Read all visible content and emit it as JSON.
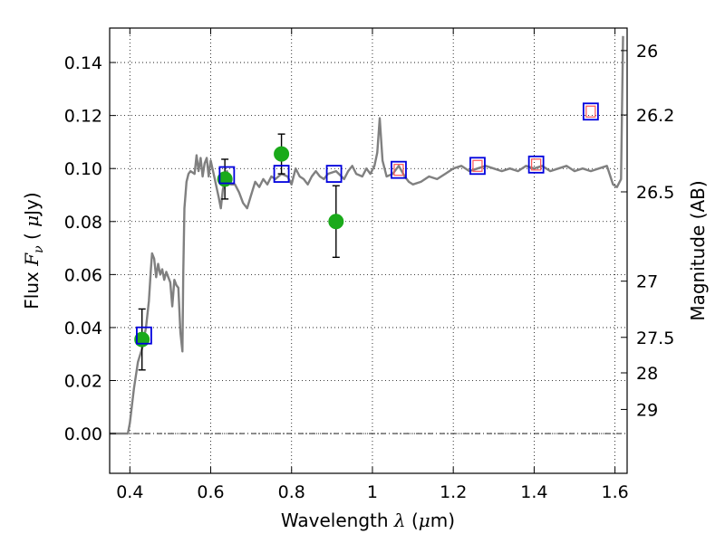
{
  "chart_data": {
    "type": "line",
    "xlabel": {
      "prefix": "Wavelength",
      "symbol": "λ",
      "unit_open": "(",
      "unit_mu": "μ",
      "unit_rest": "m)"
    },
    "ylabel": {
      "prefix": "Flux",
      "symbol": "F",
      "subscript": "ν",
      "unit_open": "(",
      "unit_mu": "μ",
      "unit_rest": "Jy)"
    },
    "y2label": "Magnitude (AB)",
    "xlim": [
      0.35,
      1.63
    ],
    "ylim": [
      -0.015,
      0.153
    ],
    "grid": true,
    "x_ticks": [
      {
        "value": 0.4,
        "label": "0.4"
      },
      {
        "value": 0.6,
        "label": "0.6"
      },
      {
        "value": 0.8,
        "label": "0.8"
      },
      {
        "value": 1.0,
        "label": "1"
      },
      {
        "value": 1.2,
        "label": "1.2"
      },
      {
        "value": 1.4,
        "label": "1.4"
      },
      {
        "value": 1.6,
        "label": "1.6"
      }
    ],
    "y_ticks": [
      {
        "value": 0.0,
        "label": "0.00"
      },
      {
        "value": 0.02,
        "label": "0.02"
      },
      {
        "value": 0.04,
        "label": "0.04"
      },
      {
        "value": 0.06,
        "label": "0.06"
      },
      {
        "value": 0.08,
        "label": "0.08"
      },
      {
        "value": 0.1,
        "label": "0.10"
      },
      {
        "value": 0.12,
        "label": "0.12"
      },
      {
        "value": 0.14,
        "label": "0.14"
      }
    ],
    "y2_ticks": [
      {
        "flux": 0.1445,
        "label": "26"
      },
      {
        "flux": 0.1202,
        "label": "26.2"
      },
      {
        "flux": 0.0912,
        "label": "26.5"
      },
      {
        "flux": 0.0575,
        "label": "27"
      },
      {
        "flux": 0.0363,
        "label": "27.5"
      },
      {
        "flux": 0.0229,
        "label": "28"
      },
      {
        "flux": 0.0091,
        "label": "29"
      }
    ],
    "zero_line": 0.0,
    "series": [
      {
        "kind": "line",
        "color": "#808080",
        "points": [
          [
            0.35,
            0.0
          ],
          [
            0.395,
            0.0
          ],
          [
            0.4,
            0.004
          ],
          [
            0.41,
            0.017
          ],
          [
            0.42,
            0.027
          ],
          [
            0.43,
            0.032
          ],
          [
            0.44,
            0.04
          ],
          [
            0.447,
            0.05
          ],
          [
            0.452,
            0.062
          ],
          [
            0.455,
            0.068
          ],
          [
            0.46,
            0.066
          ],
          [
            0.465,
            0.059
          ],
          [
            0.47,
            0.064
          ],
          [
            0.475,
            0.06
          ],
          [
            0.48,
            0.062
          ],
          [
            0.485,
            0.058
          ],
          [
            0.49,
            0.061
          ],
          [
            0.495,
            0.059
          ],
          [
            0.5,
            0.057
          ],
          [
            0.505,
            0.048
          ],
          [
            0.51,
            0.058
          ],
          [
            0.515,
            0.056
          ],
          [
            0.52,
            0.055
          ],
          [
            0.525,
            0.038
          ],
          [
            0.53,
            0.031
          ],
          [
            0.532,
            0.06
          ],
          [
            0.535,
            0.085
          ],
          [
            0.54,
            0.095
          ],
          [
            0.545,
            0.098
          ],
          [
            0.55,
            0.099
          ],
          [
            0.56,
            0.098
          ],
          [
            0.565,
            0.105
          ],
          [
            0.57,
            0.099
          ],
          [
            0.575,
            0.104
          ],
          [
            0.58,
            0.097
          ],
          [
            0.585,
            0.102
          ],
          [
            0.59,
            0.104
          ],
          [
            0.595,
            0.097
          ],
          [
            0.6,
            0.103
          ],
          [
            0.61,
            0.096
          ],
          [
            0.62,
            0.089
          ],
          [
            0.625,
            0.085
          ],
          [
            0.63,
            0.092
          ],
          [
            0.64,
            0.099
          ],
          [
            0.65,
            0.094
          ],
          [
            0.66,
            0.094
          ],
          [
            0.67,
            0.091
          ],
          [
            0.68,
            0.087
          ],
          [
            0.69,
            0.085
          ],
          [
            0.7,
            0.09
          ],
          [
            0.71,
            0.095
          ],
          [
            0.72,
            0.093
          ],
          [
            0.73,
            0.096
          ],
          [
            0.74,
            0.094
          ],
          [
            0.75,
            0.097
          ],
          [
            0.76,
            0.096
          ],
          [
            0.775,
            0.098
          ],
          [
            0.79,
            0.097
          ],
          [
            0.8,
            0.094
          ],
          [
            0.81,
            0.1
          ],
          [
            0.82,
            0.097
          ],
          [
            0.83,
            0.096
          ],
          [
            0.84,
            0.094
          ],
          [
            0.85,
            0.097
          ],
          [
            0.86,
            0.099
          ],
          [
            0.87,
            0.097
          ],
          [
            0.88,
            0.096
          ],
          [
            0.89,
            0.098
          ],
          [
            0.91,
            0.099
          ],
          [
            0.93,
            0.096
          ],
          [
            0.94,
            0.099
          ],
          [
            0.95,
            0.101
          ],
          [
            0.96,
            0.098
          ],
          [
            0.975,
            0.097
          ],
          [
            0.985,
            0.1
          ],
          [
            0.995,
            0.098
          ],
          [
            1.005,
            0.101
          ],
          [
            1.012,
            0.106
          ],
          [
            1.018,
            0.119
          ],
          [
            1.025,
            0.103
          ],
          [
            1.035,
            0.097
          ],
          [
            1.05,
            0.098
          ],
          [
            1.065,
            0.101
          ],
          [
            1.08,
            0.097
          ],
          [
            1.09,
            0.095
          ],
          [
            1.1,
            0.094
          ],
          [
            1.12,
            0.095
          ],
          [
            1.14,
            0.097
          ],
          [
            1.16,
            0.096
          ],
          [
            1.18,
            0.098
          ],
          [
            1.2,
            0.1
          ],
          [
            1.22,
            0.101
          ],
          [
            1.24,
            0.099
          ],
          [
            1.26,
            0.1
          ],
          [
            1.28,
            0.101
          ],
          [
            1.3,
            0.1
          ],
          [
            1.32,
            0.099
          ],
          [
            1.34,
            0.1
          ],
          [
            1.36,
            0.099
          ],
          [
            1.38,
            0.101
          ],
          [
            1.4,
            0.1
          ],
          [
            1.42,
            0.101
          ],
          [
            1.44,
            0.099
          ],
          [
            1.46,
            0.1
          ],
          [
            1.48,
            0.101
          ],
          [
            1.5,
            0.099
          ],
          [
            1.52,
            0.1
          ],
          [
            1.54,
            0.099
          ],
          [
            1.56,
            0.1
          ],
          [
            1.58,
            0.101
          ],
          [
            1.595,
            0.094
          ],
          [
            1.605,
            0.093
          ],
          [
            1.615,
            0.096
          ],
          [
            1.62,
            0.15
          ]
        ]
      },
      {
        "kind": "points",
        "marker": "circle",
        "color": "#1aaa1a",
        "points": [
          {
            "x": 0.43,
            "y": 0.0355,
            "err": 0.0115
          },
          {
            "x": 0.635,
            "y": 0.096,
            "err": 0.0075
          },
          {
            "x": 0.775,
            "y": 0.1055,
            "err": 0.0075
          },
          {
            "x": 0.91,
            "y": 0.08,
            "err": 0.0135
          }
        ]
      },
      {
        "kind": "points",
        "marker": "square-open",
        "color": "#0000dd",
        "points": [
          {
            "x": 0.435,
            "y": 0.037
          },
          {
            "x": 0.64,
            "y": 0.0975
          },
          {
            "x": 0.775,
            "y": 0.098
          },
          {
            "x": 0.905,
            "y": 0.098
          },
          {
            "x": 1.065,
            "y": 0.0995
          },
          {
            "x": 1.26,
            "y": 0.101
          },
          {
            "x": 1.405,
            "y": 0.1015
          },
          {
            "x": 1.54,
            "y": 0.1215
          }
        ]
      },
      {
        "kind": "points",
        "marker": "square-open-small",
        "color": "#ff5555",
        "points": [
          {
            "x": 1.065,
            "y": 0.0995
          },
          {
            "x": 1.26,
            "y": 0.101
          },
          {
            "x": 1.405,
            "y": 0.1015
          },
          {
            "x": 1.54,
            "y": 0.1215
          }
        ]
      }
    ]
  }
}
